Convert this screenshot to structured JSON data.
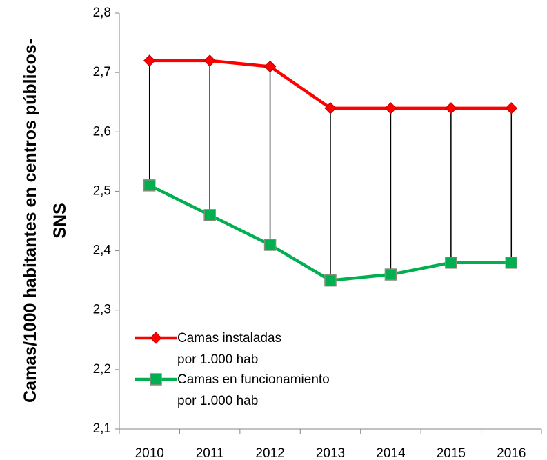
{
  "chart_data": {
    "type": "line",
    "y_label": "Camas/1000 habitantes en centros públicos-SNS",
    "categories": [
      "2010",
      "2011",
      "2012",
      "2013",
      "2014",
      "2015",
      "2016"
    ],
    "series": [
      {
        "name": "Camas instaladas por 1.000 hab",
        "color": "#ff0000",
        "values": [
          2.72,
          2.72,
          2.71,
          2.64,
          2.64,
          2.64,
          2.64
        ]
      },
      {
        "name": "Camas en funcionamiento por 1.000 hab",
        "color": "#00b050",
        "values": [
          2.51,
          2.46,
          2.41,
          2.35,
          2.36,
          2.38,
          2.38
        ]
      }
    ],
    "ylim": [
      2.1,
      2.8
    ],
    "yticks": [
      {
        "value": 2.1,
        "label": "2,1"
      },
      {
        "value": 2.2,
        "label": "2,2"
      },
      {
        "value": 2.3,
        "label": "2,3"
      },
      {
        "value": 2.4,
        "label": "2,4"
      },
      {
        "value": 2.5,
        "label": "2,5"
      },
      {
        "value": 2.6,
        "label": "2,6"
      },
      {
        "value": 2.7,
        "label": "2,7"
      },
      {
        "value": 2.8,
        "label": "2,8"
      }
    ],
    "grid": false,
    "legend": "lower left"
  }
}
